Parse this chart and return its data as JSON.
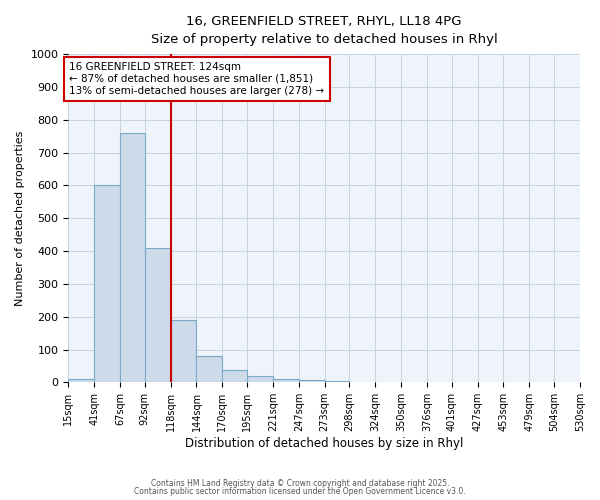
{
  "title_line1": "16, GREENFIELD STREET, RHYL, LL18 4PG",
  "title_line2": "Size of property relative to detached houses in Rhyl",
  "xlabel": "Distribution of detached houses by size in Rhyl",
  "ylabel": "Number of detached properties",
  "bin_edges": [
    15,
    41,
    67,
    92,
    118,
    144,
    170,
    195,
    221,
    247,
    273,
    298,
    324,
    350,
    376,
    401,
    427,
    453,
    479,
    504,
    530
  ],
  "bar_heights": [
    10,
    600,
    760,
    410,
    190,
    80,
    38,
    18,
    10,
    8,
    5,
    0,
    0,
    0,
    0,
    0,
    0,
    0,
    0,
    0
  ],
  "bar_color": "#cddaea",
  "bar_edge_color": "#7aaac8",
  "bar_edge_width": 0.8,
  "red_line_x": 118,
  "red_line_color": "#cc0000",
  "ylim": [
    0,
    1000
  ],
  "yticks": [
    0,
    100,
    200,
    300,
    400,
    500,
    600,
    700,
    800,
    900,
    1000
  ],
  "grid_color": "#c5d4e0",
  "background_color": "#eef4fa",
  "annotation_text": "16 GREENFIELD STREET: 124sqm\n← 87% of detached houses are smaller (1,851)\n13% of semi-detached houses are larger (278) →",
  "annotation_box_color": "#ffffff",
  "annotation_border_color": "#cc0000",
  "footer_line1": "Contains HM Land Registry data © Crown copyright and database right 2025.",
  "footer_line2": "Contains public sector information licensed under the Open Government Licence v3.0.",
  "tick_labels": [
    "15sqm",
    "41sqm",
    "67sqm",
    "92sqm",
    "118sqm",
    "144sqm",
    "170sqm",
    "195sqm",
    "221sqm",
    "247sqm",
    "273sqm",
    "298sqm",
    "324sqm",
    "350sqm",
    "376sqm",
    "401sqm",
    "427sqm",
    "453sqm",
    "479sqm",
    "504sqm",
    "530sqm"
  ],
  "fig_bg_color": "#ffffff"
}
